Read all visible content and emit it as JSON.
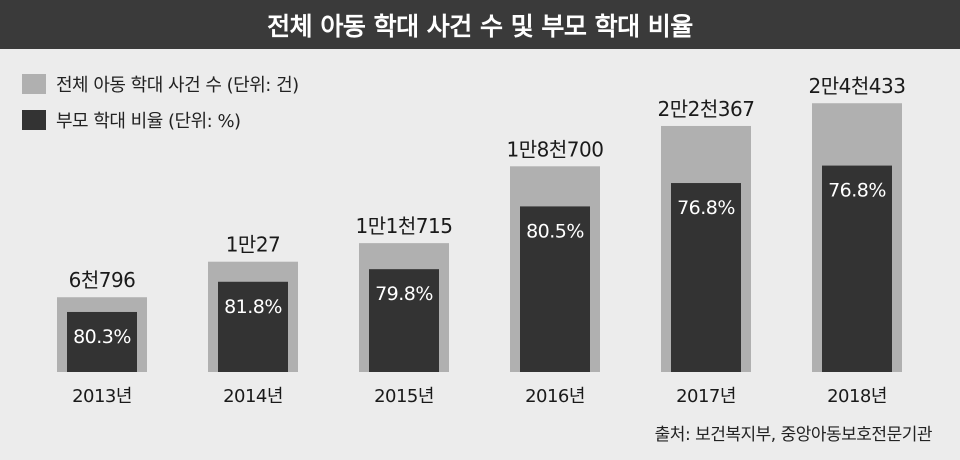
{
  "title": "전체 아동 학대 사건 수 및 부모 학대 비율",
  "legend": {
    "total_label": "전체 아동 학대 사건 수 (단위: 건)",
    "ratio_label": "부모 학대 비율 (단위: %)"
  },
  "source": "출처: 보건복지부, 중앙아동보호전문기관",
  "colors": {
    "total": "#b0b0b0",
    "ratio": "#333333",
    "title_bg": "#3a3a3a",
    "background": "#ececec"
  },
  "chart_data": {
    "type": "bar",
    "categories": [
      "2013년",
      "2014년",
      "2015년",
      "2016년",
      "2017년",
      "2018년"
    ],
    "series": [
      {
        "name": "전체 아동 학대 사건 수 (단위: 건)",
        "values": [
          6796,
          10027,
          11715,
          18700,
          22367,
          24433
        ],
        "labels": [
          "6천796",
          "1만27",
          "1만1천715",
          "1만8천700",
          "2만2천367",
          "2만4천433"
        ]
      },
      {
        "name": "부모 학대 비율 (단위: %)",
        "values": [
          80.3,
          81.8,
          79.8,
          80.5,
          76.8,
          76.8
        ],
        "labels": [
          "80.3%",
          "81.8%",
          "79.8%",
          "80.5%",
          "76.8%",
          "76.8%"
        ]
      }
    ],
    "ylim": [
      0,
      25000
    ]
  }
}
